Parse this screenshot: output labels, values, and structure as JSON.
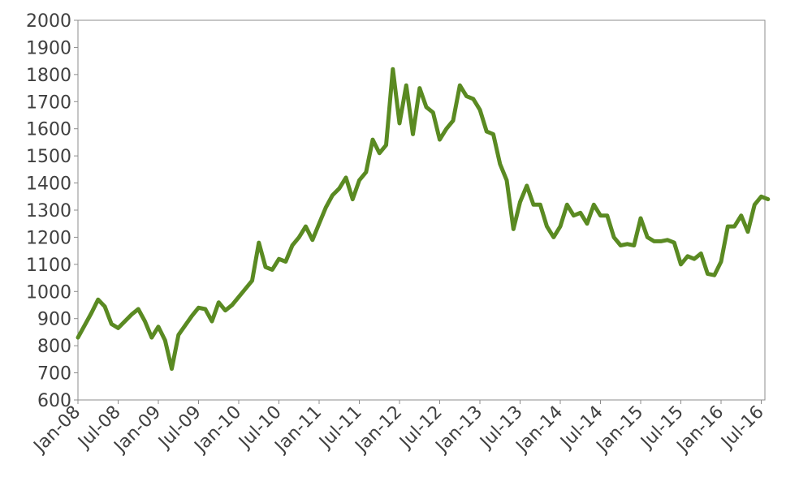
{
  "chart_data": {
    "type": "line",
    "title": "",
    "xlabel": "",
    "ylabel": "",
    "ylim": [
      600,
      2000
    ],
    "y_ticks": [
      600,
      700,
      800,
      900,
      1000,
      1100,
      1200,
      1300,
      1400,
      1500,
      1600,
      1700,
      1800,
      1900,
      2000
    ],
    "x_tick_labels": [
      "Jan-08",
      "Jul-08",
      "Jan-09",
      "Jul-09",
      "Jan-10",
      "Jul-10",
      "Jan-11",
      "Jul-11",
      "Jan-12",
      "Jul-12",
      "Jan-13",
      "Jul-13",
      "Jan-14",
      "Jul-14",
      "Jan-15",
      "Jul-15",
      "Jan-16",
      "Jul-16"
    ],
    "grid": false,
    "legend": "none",
    "series": [
      {
        "color": "#5a8a22",
        "points": [
          [
            "Jan-08",
            830
          ],
          [
            "Mar-08",
            920
          ],
          [
            "Apr-08",
            970
          ],
          [
            "May-08",
            945
          ],
          [
            "Jun-08",
            880
          ],
          [
            "Jul-08",
            865
          ],
          [
            "Sep-08",
            915
          ],
          [
            "Oct-08",
            935
          ],
          [
            "Nov-08",
            890
          ],
          [
            "Dec-08",
            830
          ],
          [
            "Jan-09",
            870
          ],
          [
            "Feb-09",
            820
          ],
          [
            "Mar-09",
            715
          ],
          [
            "Apr-09",
            840
          ],
          [
            "Jun-09",
            910
          ],
          [
            "Jul-09",
            940
          ],
          [
            "Aug-09",
            935
          ],
          [
            "Sep-09",
            890
          ],
          [
            "Oct-09",
            960
          ],
          [
            "Nov-09",
            930
          ],
          [
            "Dec-09",
            950
          ],
          [
            "Feb-10",
            1010
          ],
          [
            "Mar-10",
            1040
          ],
          [
            "Apr-10",
            1180
          ],
          [
            "May-10",
            1090
          ],
          [
            "Jun-10",
            1080
          ],
          [
            "Jul-10",
            1120
          ],
          [
            "Aug-10",
            1110
          ],
          [
            "Sep-10",
            1170
          ],
          [
            "Oct-10",
            1200
          ],
          [
            "Nov-10",
            1240
          ],
          [
            "Dec-10",
            1190
          ],
          [
            "Jan-11",
            1250
          ],
          [
            "Feb-11",
            1310
          ],
          [
            "Mar-11",
            1355
          ],
          [
            "Apr-11",
            1380
          ],
          [
            "May-11",
            1420
          ],
          [
            "Jun-11",
            1340
          ],
          [
            "Jul-11",
            1410
          ],
          [
            "Aug-11",
            1440
          ],
          [
            "Sep-11",
            1560
          ],
          [
            "Oct-11",
            1510
          ],
          [
            "Nov-11",
            1540
          ],
          [
            "Dec-11",
            1820
          ],
          [
            "Jan-12",
            1620
          ],
          [
            "Feb-12",
            1760
          ],
          [
            "Mar-12",
            1580
          ],
          [
            "Apr-12",
            1750
          ],
          [
            "May-12",
            1680
          ],
          [
            "Jun-12",
            1660
          ],
          [
            "Jul-12",
            1560
          ],
          [
            "Aug-12",
            1600
          ],
          [
            "Sep-12",
            1630
          ],
          [
            "Oct-12",
            1760
          ],
          [
            "Nov-12",
            1720
          ],
          [
            "Dec-12",
            1710
          ],
          [
            "Jan-13",
            1670
          ],
          [
            "Feb-13",
            1590
          ],
          [
            "Mar-13",
            1580
          ],
          [
            "Apr-13",
            1470
          ],
          [
            "May-13",
            1410
          ],
          [
            "Jun-13",
            1230
          ],
          [
            "Jul-13",
            1330
          ],
          [
            "Aug-13",
            1390
          ],
          [
            "Sep-13",
            1320
          ],
          [
            "Oct-13",
            1320
          ],
          [
            "Nov-13",
            1240
          ],
          [
            "Dec-13",
            1200
          ],
          [
            "Jan-14",
            1240
          ],
          [
            "Feb-14",
            1320
          ],
          [
            "Mar-14",
            1280
          ],
          [
            "Apr-14",
            1290
          ],
          [
            "May-14",
            1250
          ],
          [
            "Jun-14",
            1320
          ],
          [
            "Jul-14",
            1280
          ],
          [
            "Aug-14",
            1280
          ],
          [
            "Sep-14",
            1200
          ],
          [
            "Oct-14",
            1170
          ],
          [
            "Nov-14",
            1175
          ],
          [
            "Dec-14",
            1170
          ],
          [
            "Jan-15",
            1270
          ],
          [
            "Feb-15",
            1200
          ],
          [
            "Mar-15",
            1185
          ],
          [
            "Apr-15",
            1185
          ],
          [
            "May-15",
            1190
          ],
          [
            "Jun-15",
            1180
          ],
          [
            "Jul-15",
            1100
          ],
          [
            "Aug-15",
            1130
          ],
          [
            "Sep-15",
            1120
          ],
          [
            "Oct-15",
            1140
          ],
          [
            "Nov-15",
            1065
          ],
          [
            "Dec-15",
            1060
          ],
          [
            "Jan-16",
            1110
          ],
          [
            "Feb-16",
            1240
          ],
          [
            "Mar-16",
            1240
          ],
          [
            "Apr-16",
            1280
          ],
          [
            "May-16",
            1220
          ],
          [
            "Jun-16",
            1320
          ],
          [
            "Jul-16",
            1350
          ],
          [
            "Aug-16",
            1340
          ]
        ]
      }
    ]
  }
}
